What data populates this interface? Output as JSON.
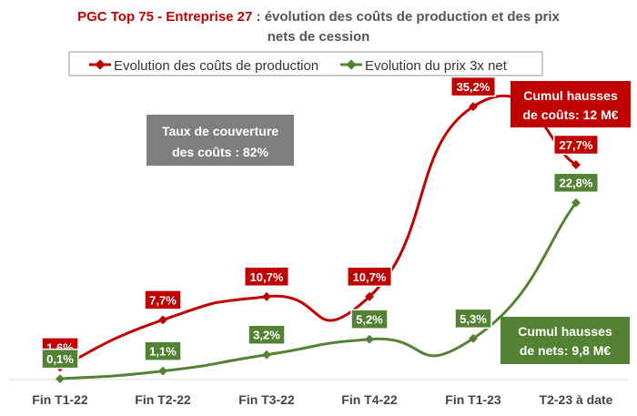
{
  "title": {
    "accent": "PGC Top 75 - Entreprise 27",
    "line1_rest": " : évolution des coûts de production et des prix",
    "line2": "nets de cession"
  },
  "colors": {
    "cost": "#c00000",
    "net": "#548235",
    "grey_box": "#7f7f7f"
  },
  "annotations": {
    "coverage": {
      "line1": "Taux de couverture",
      "line2": "des coûts : 82%"
    },
    "cost_total": {
      "line1": "Cumul hausses",
      "line2": "de coûts: 12 M€"
    },
    "net_total": {
      "line1": "Cumul hausses",
      "line2": "de nets: 9,8 M€"
    }
  },
  "chart_data": {
    "type": "line",
    "categories": [
      "Fin T1-22",
      "Fin T2-22",
      "Fin T3-22",
      "Fin T4-22",
      "Fin T1-23",
      "T2-23 à date"
    ],
    "series": [
      {
        "name": "Evolution des coûts de production",
        "values": [
          1.6,
          7.7,
          10.7,
          10.7,
          35.2,
          27.7
        ],
        "labels": [
          "1,6%",
          "7,7%",
          "10,7%",
          "10,7%",
          "35,2%",
          "27,7%"
        ]
      },
      {
        "name": "Evolution du prix 3x net",
        "values": [
          0.1,
          1.1,
          3.2,
          5.2,
          5.3,
          22.8
        ],
        "labels": [
          "0,1%",
          "1,1%",
          "3,2%",
          "5,2%",
          "5,3%",
          "22,8%"
        ]
      }
    ],
    "legend": "top",
    "grid": false
  }
}
